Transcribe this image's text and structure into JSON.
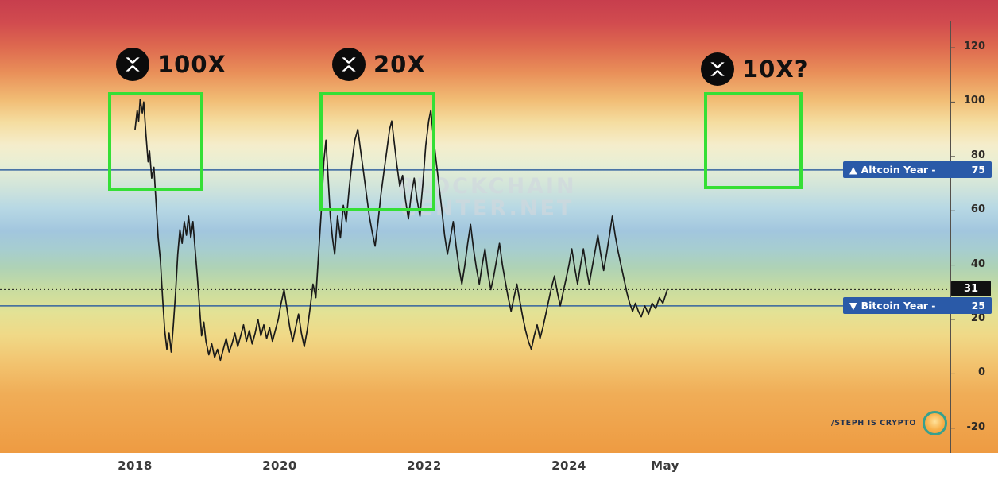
{
  "chart_data": {
    "type": "line",
    "x_ticks": [
      {
        "label": "2018",
        "year": 2018
      },
      {
        "label": "2020",
        "year": 2020
      },
      {
        "label": "2022",
        "year": 2022
      },
      {
        "label": "2024",
        "year": 2024
      },
      {
        "label": "May",
        "year": 2025.33
      }
    ],
    "y_ticks": [
      120,
      100,
      80,
      60,
      40,
      20,
      0,
      -20
    ],
    "xlim": [
      2016.1,
      2029.3
    ],
    "ylim": [
      -29,
      137
    ],
    "grid": false,
    "y_axis_position": "right",
    "current_value": 31,
    "reference_lines": [
      {
        "label": "Altcoin Year",
        "value": 75
      },
      {
        "label": "Bitcoin Year",
        "value": 25
      }
    ],
    "annotations": [
      {
        "label": "100X",
        "icon": "xrp-logo",
        "year_range": [
          2017.6,
          2018.95
        ],
        "value_range": [
          66,
          103
        ]
      },
      {
        "label": "20X",
        "icon": "xrp-logo",
        "year_range": [
          2020.55,
          2022.15
        ],
        "value_range": [
          59,
          103
        ]
      },
      {
        "label": "10X?",
        "icon": "xrp-logo",
        "year_range": [
          2025.85,
          2027.2
        ],
        "value_range": [
          67,
          103
        ]
      }
    ],
    "series": [
      {
        "name": "Altcoin Season Index",
        "points": [
          [
            2018.0,
            90
          ],
          [
            2018.03,
            97
          ],
          [
            2018.05,
            93
          ],
          [
            2018.07,
            101
          ],
          [
            2018.1,
            96
          ],
          [
            2018.12,
            100
          ],
          [
            2018.15,
            88
          ],
          [
            2018.18,
            78
          ],
          [
            2018.2,
            82
          ],
          [
            2018.23,
            72
          ],
          [
            2018.26,
            76
          ],
          [
            2018.29,
            63
          ],
          [
            2018.32,
            50
          ],
          [
            2018.35,
            42
          ],
          [
            2018.38,
            28
          ],
          [
            2018.41,
            16
          ],
          [
            2018.44,
            9
          ],
          [
            2018.47,
            15
          ],
          [
            2018.5,
            8
          ],
          [
            2018.53,
            18
          ],
          [
            2018.56,
            30
          ],
          [
            2018.59,
            44
          ],
          [
            2018.62,
            53
          ],
          [
            2018.65,
            48
          ],
          [
            2018.68,
            56
          ],
          [
            2018.71,
            51
          ],
          [
            2018.74,
            58
          ],
          [
            2018.77,
            50
          ],
          [
            2018.8,
            56
          ],
          [
            2018.83,
            46
          ],
          [
            2018.86,
            36
          ],
          [
            2018.89,
            25
          ],
          [
            2018.92,
            14
          ],
          [
            2018.95,
            19
          ],
          [
            2018.98,
            12
          ],
          [
            2019.02,
            7
          ],
          [
            2019.06,
            11
          ],
          [
            2019.1,
            6
          ],
          [
            2019.14,
            9
          ],
          [
            2019.18,
            5
          ],
          [
            2019.22,
            9
          ],
          [
            2019.26,
            13
          ],
          [
            2019.3,
            8
          ],
          [
            2019.34,
            11
          ],
          [
            2019.38,
            15
          ],
          [
            2019.42,
            10
          ],
          [
            2019.46,
            14
          ],
          [
            2019.5,
            18
          ],
          [
            2019.54,
            12
          ],
          [
            2019.58,
            16
          ],
          [
            2019.62,
            11
          ],
          [
            2019.66,
            15
          ],
          [
            2019.7,
            20
          ],
          [
            2019.74,
            14
          ],
          [
            2019.78,
            18
          ],
          [
            2019.82,
            13
          ],
          [
            2019.86,
            17
          ],
          [
            2019.9,
            12
          ],
          [
            2019.94,
            16
          ],
          [
            2019.98,
            20
          ],
          [
            2020.02,
            26
          ],
          [
            2020.06,
            31
          ],
          [
            2020.1,
            24
          ],
          [
            2020.14,
            17
          ],
          [
            2020.18,
            12
          ],
          [
            2020.22,
            17
          ],
          [
            2020.26,
            22
          ],
          [
            2020.3,
            15
          ],
          [
            2020.34,
            10
          ],
          [
            2020.38,
            16
          ],
          [
            2020.42,
            24
          ],
          [
            2020.46,
            33
          ],
          [
            2020.5,
            28
          ],
          [
            2020.54,
            45
          ],
          [
            2020.58,
            62
          ],
          [
            2020.61,
            78
          ],
          [
            2020.64,
            86
          ],
          [
            2020.67,
            72
          ],
          [
            2020.7,
            58
          ],
          [
            2020.73,
            50
          ],
          [
            2020.76,
            44
          ],
          [
            2020.8,
            58
          ],
          [
            2020.84,
            50
          ],
          [
            2020.88,
            62
          ],
          [
            2020.92,
            56
          ],
          [
            2020.96,
            68
          ],
          [
            2021.0,
            78
          ],
          [
            2021.04,
            86
          ],
          [
            2021.08,
            90
          ],
          [
            2021.12,
            82
          ],
          [
            2021.16,
            74
          ],
          [
            2021.2,
            66
          ],
          [
            2021.24,
            58
          ],
          [
            2021.28,
            52
          ],
          [
            2021.32,
            47
          ],
          [
            2021.36,
            56
          ],
          [
            2021.4,
            66
          ],
          [
            2021.44,
            74
          ],
          [
            2021.48,
            82
          ],
          [
            2021.52,
            90
          ],
          [
            2021.55,
            93
          ],
          [
            2021.58,
            86
          ],
          [
            2021.62,
            77
          ],
          [
            2021.66,
            69
          ],
          [
            2021.7,
            73
          ],
          [
            2021.74,
            64
          ],
          [
            2021.78,
            57
          ],
          [
            2021.82,
            66
          ],
          [
            2021.86,
            72
          ],
          [
            2021.9,
            64
          ],
          [
            2021.94,
            58
          ],
          [
            2021.98,
            70
          ],
          [
            2022.02,
            84
          ],
          [
            2022.06,
            93
          ],
          [
            2022.09,
            97
          ],
          [
            2022.12,
            89
          ],
          [
            2022.16,
            79
          ],
          [
            2022.2,
            70
          ],
          [
            2022.24,
            61
          ],
          [
            2022.28,
            51
          ],
          [
            2022.32,
            44
          ],
          [
            2022.36,
            50
          ],
          [
            2022.4,
            56
          ],
          [
            2022.44,
            47
          ],
          [
            2022.48,
            39
          ],
          [
            2022.52,
            33
          ],
          [
            2022.56,
            40
          ],
          [
            2022.6,
            48
          ],
          [
            2022.64,
            55
          ],
          [
            2022.68,
            46
          ],
          [
            2022.72,
            39
          ],
          [
            2022.76,
            33
          ],
          [
            2022.8,
            40
          ],
          [
            2022.84,
            46
          ],
          [
            2022.88,
            37
          ],
          [
            2022.92,
            31
          ],
          [
            2022.96,
            36
          ],
          [
            2023.0,
            42
          ],
          [
            2023.04,
            48
          ],
          [
            2023.08,
            40
          ],
          [
            2023.12,
            34
          ],
          [
            2023.16,
            28
          ],
          [
            2023.2,
            23
          ],
          [
            2023.24,
            28
          ],
          [
            2023.28,
            33
          ],
          [
            2023.32,
            27
          ],
          [
            2023.36,
            21
          ],
          [
            2023.4,
            16
          ],
          [
            2023.44,
            12
          ],
          [
            2023.48,
            9
          ],
          [
            2023.52,
            14
          ],
          [
            2023.56,
            18
          ],
          [
            2023.6,
            13
          ],
          [
            2023.64,
            17
          ],
          [
            2023.68,
            22
          ],
          [
            2023.72,
            27
          ],
          [
            2023.76,
            32
          ],
          [
            2023.8,
            36
          ],
          [
            2023.84,
            30
          ],
          [
            2023.88,
            25
          ],
          [
            2023.92,
            30
          ],
          [
            2023.96,
            35
          ],
          [
            2024.0,
            40
          ],
          [
            2024.04,
            46
          ],
          [
            2024.08,
            39
          ],
          [
            2024.12,
            33
          ],
          [
            2024.16,
            40
          ],
          [
            2024.2,
            46
          ],
          [
            2024.24,
            39
          ],
          [
            2024.28,
            33
          ],
          [
            2024.32,
            39
          ],
          [
            2024.36,
            45
          ],
          [
            2024.4,
            51
          ],
          [
            2024.44,
            44
          ],
          [
            2024.48,
            38
          ],
          [
            2024.52,
            44
          ],
          [
            2024.56,
            51
          ],
          [
            2024.6,
            58
          ],
          [
            2024.64,
            51
          ],
          [
            2024.68,
            45
          ],
          [
            2024.72,
            40
          ],
          [
            2024.76,
            35
          ],
          [
            2024.8,
            30
          ],
          [
            2024.84,
            26
          ],
          [
            2024.88,
            23
          ],
          [
            2024.92,
            26
          ],
          [
            2024.96,
            23
          ],
          [
            2025.0,
            21
          ],
          [
            2025.05,
            25
          ],
          [
            2025.1,
            22
          ],
          [
            2025.15,
            26
          ],
          [
            2025.2,
            24
          ],
          [
            2025.25,
            28
          ],
          [
            2025.3,
            26
          ],
          [
            2025.36,
            31
          ]
        ]
      }
    ]
  },
  "badges": {
    "altcoin": {
      "arrow": "▲",
      "label": "Altcoin Year -",
      "value": "75"
    },
    "bitcoin": {
      "arrow": "▼",
      "label": "Bitcoin Year -",
      "value": "25"
    },
    "current": {
      "value": "31"
    }
  },
  "watermark": {
    "line1": "BLOCKCHAIN",
    "line2": "CENTER.NET"
  },
  "credit": {
    "text": "/STEPH IS CRYPTO",
    "logo": "steph-is-crypto-logo"
  },
  "theme": {
    "series_color": "#1a1a1a",
    "reference_line_color": "#34639f",
    "highlight_box_color": "#35df35",
    "badge_blue": "#2a5aa8",
    "badge_black": "#111111"
  }
}
